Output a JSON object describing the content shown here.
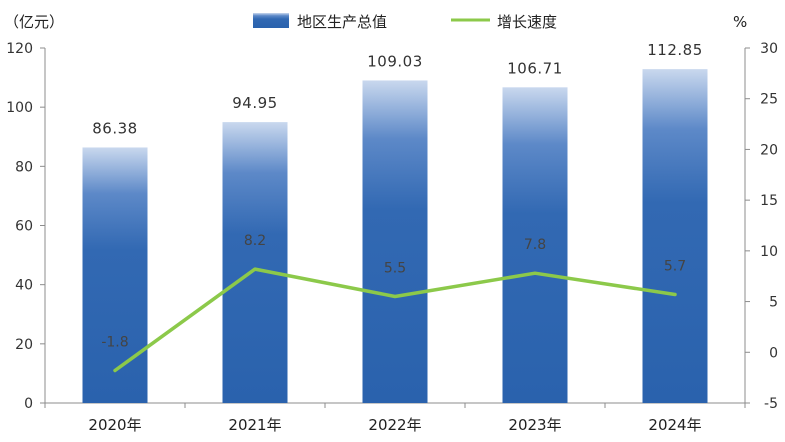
{
  "chart_data": {
    "type": "bar",
    "categories": [
      "2020年",
      "2021年",
      "2022年",
      "2023年",
      "2024年"
    ],
    "series": [
      {
        "name": "地区生产总值",
        "type": "bar",
        "axis": "left",
        "values": [
          86.38,
          94.95,
          109.03,
          106.71,
          112.85
        ],
        "color": "#2f67b1"
      },
      {
        "name": "增长速度",
        "type": "line",
        "axis": "right",
        "values": [
          -1.8,
          8.2,
          5.5,
          7.8,
          5.7
        ],
        "color": "#8cc94a"
      }
    ],
    "data_labels": {
      "bar": [
        "86.38",
        "94.95",
        "109.03",
        "106.71",
        "112.85"
      ],
      "line": [
        "-1.8",
        "8.2",
        "5.5",
        "7.8",
        "5.7"
      ]
    },
    "left_axis": {
      "unit_label": "（亿元）",
      "ylim": [
        0,
        120
      ],
      "ticks": [
        "0",
        "20",
        "40",
        "60",
        "80",
        "100",
        "120"
      ]
    },
    "right_axis": {
      "unit_label": "%",
      "ylim": [
        -5,
        30
      ],
      "ticks": [
        "-5",
        "0",
        "5",
        "10",
        "15",
        "20",
        "25",
        "30"
      ]
    },
    "legend": {
      "position": "top-center"
    },
    "grid": false
  }
}
